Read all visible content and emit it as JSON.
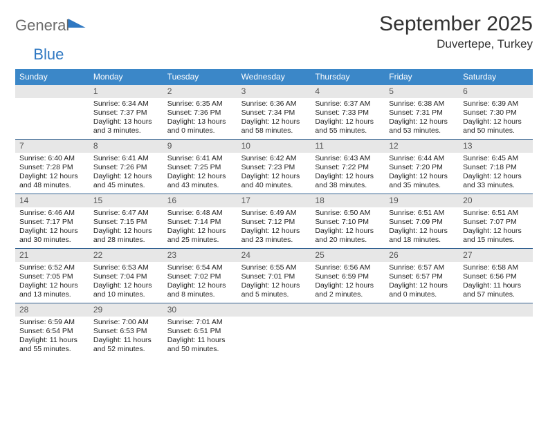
{
  "logo": {
    "part1": "General",
    "part2": "Blue"
  },
  "title": "September 2025",
  "location": "Duvertepe, Turkey",
  "colors": {
    "header_bg": "#3b87c8",
    "daynum_bg": "#e7e7e7",
    "week_border": "#2f5f8f",
    "text": "#222222",
    "logo_blue": "#2f78c2"
  },
  "fonts": {
    "title_size_pt": 30,
    "location_size_pt": 17,
    "dow_size_pt": 12,
    "daynum_size_pt": 12,
    "body_size_pt": 10.5
  },
  "dow": [
    "Sunday",
    "Monday",
    "Tuesday",
    "Wednesday",
    "Thursday",
    "Friday",
    "Saturday"
  ],
  "weeks": [
    [
      {
        "n": "",
        "sr": "",
        "ss": "",
        "dl": ""
      },
      {
        "n": "1",
        "sr": "Sunrise: 6:34 AM",
        "ss": "Sunset: 7:37 PM",
        "dl": "Daylight: 13 hours and 3 minutes."
      },
      {
        "n": "2",
        "sr": "Sunrise: 6:35 AM",
        "ss": "Sunset: 7:36 PM",
        "dl": "Daylight: 13 hours and 0 minutes."
      },
      {
        "n": "3",
        "sr": "Sunrise: 6:36 AM",
        "ss": "Sunset: 7:34 PM",
        "dl": "Daylight: 12 hours and 58 minutes."
      },
      {
        "n": "4",
        "sr": "Sunrise: 6:37 AM",
        "ss": "Sunset: 7:33 PM",
        "dl": "Daylight: 12 hours and 55 minutes."
      },
      {
        "n": "5",
        "sr": "Sunrise: 6:38 AM",
        "ss": "Sunset: 7:31 PM",
        "dl": "Daylight: 12 hours and 53 minutes."
      },
      {
        "n": "6",
        "sr": "Sunrise: 6:39 AM",
        "ss": "Sunset: 7:30 PM",
        "dl": "Daylight: 12 hours and 50 minutes."
      }
    ],
    [
      {
        "n": "7",
        "sr": "Sunrise: 6:40 AM",
        "ss": "Sunset: 7:28 PM",
        "dl": "Daylight: 12 hours and 48 minutes."
      },
      {
        "n": "8",
        "sr": "Sunrise: 6:41 AM",
        "ss": "Sunset: 7:26 PM",
        "dl": "Daylight: 12 hours and 45 minutes."
      },
      {
        "n": "9",
        "sr": "Sunrise: 6:41 AM",
        "ss": "Sunset: 7:25 PM",
        "dl": "Daylight: 12 hours and 43 minutes."
      },
      {
        "n": "10",
        "sr": "Sunrise: 6:42 AM",
        "ss": "Sunset: 7:23 PM",
        "dl": "Daylight: 12 hours and 40 minutes."
      },
      {
        "n": "11",
        "sr": "Sunrise: 6:43 AM",
        "ss": "Sunset: 7:22 PM",
        "dl": "Daylight: 12 hours and 38 minutes."
      },
      {
        "n": "12",
        "sr": "Sunrise: 6:44 AM",
        "ss": "Sunset: 7:20 PM",
        "dl": "Daylight: 12 hours and 35 minutes."
      },
      {
        "n": "13",
        "sr": "Sunrise: 6:45 AM",
        "ss": "Sunset: 7:18 PM",
        "dl": "Daylight: 12 hours and 33 minutes."
      }
    ],
    [
      {
        "n": "14",
        "sr": "Sunrise: 6:46 AM",
        "ss": "Sunset: 7:17 PM",
        "dl": "Daylight: 12 hours and 30 minutes."
      },
      {
        "n": "15",
        "sr": "Sunrise: 6:47 AM",
        "ss": "Sunset: 7:15 PM",
        "dl": "Daylight: 12 hours and 28 minutes."
      },
      {
        "n": "16",
        "sr": "Sunrise: 6:48 AM",
        "ss": "Sunset: 7:14 PM",
        "dl": "Daylight: 12 hours and 25 minutes."
      },
      {
        "n": "17",
        "sr": "Sunrise: 6:49 AM",
        "ss": "Sunset: 7:12 PM",
        "dl": "Daylight: 12 hours and 23 minutes."
      },
      {
        "n": "18",
        "sr": "Sunrise: 6:50 AM",
        "ss": "Sunset: 7:10 PM",
        "dl": "Daylight: 12 hours and 20 minutes."
      },
      {
        "n": "19",
        "sr": "Sunrise: 6:51 AM",
        "ss": "Sunset: 7:09 PM",
        "dl": "Daylight: 12 hours and 18 minutes."
      },
      {
        "n": "20",
        "sr": "Sunrise: 6:51 AM",
        "ss": "Sunset: 7:07 PM",
        "dl": "Daylight: 12 hours and 15 minutes."
      }
    ],
    [
      {
        "n": "21",
        "sr": "Sunrise: 6:52 AM",
        "ss": "Sunset: 7:05 PM",
        "dl": "Daylight: 12 hours and 13 minutes."
      },
      {
        "n": "22",
        "sr": "Sunrise: 6:53 AM",
        "ss": "Sunset: 7:04 PM",
        "dl": "Daylight: 12 hours and 10 minutes."
      },
      {
        "n": "23",
        "sr": "Sunrise: 6:54 AM",
        "ss": "Sunset: 7:02 PM",
        "dl": "Daylight: 12 hours and 8 minutes."
      },
      {
        "n": "24",
        "sr": "Sunrise: 6:55 AM",
        "ss": "Sunset: 7:01 PM",
        "dl": "Daylight: 12 hours and 5 minutes."
      },
      {
        "n": "25",
        "sr": "Sunrise: 6:56 AM",
        "ss": "Sunset: 6:59 PM",
        "dl": "Daylight: 12 hours and 2 minutes."
      },
      {
        "n": "26",
        "sr": "Sunrise: 6:57 AM",
        "ss": "Sunset: 6:57 PM",
        "dl": "Daylight: 12 hours and 0 minutes."
      },
      {
        "n": "27",
        "sr": "Sunrise: 6:58 AM",
        "ss": "Sunset: 6:56 PM",
        "dl": "Daylight: 11 hours and 57 minutes."
      }
    ],
    [
      {
        "n": "28",
        "sr": "Sunrise: 6:59 AM",
        "ss": "Sunset: 6:54 PM",
        "dl": "Daylight: 11 hours and 55 minutes."
      },
      {
        "n": "29",
        "sr": "Sunrise: 7:00 AM",
        "ss": "Sunset: 6:53 PM",
        "dl": "Daylight: 11 hours and 52 minutes."
      },
      {
        "n": "30",
        "sr": "Sunrise: 7:01 AM",
        "ss": "Sunset: 6:51 PM",
        "dl": "Daylight: 11 hours and 50 minutes."
      },
      {
        "n": "",
        "sr": "",
        "ss": "",
        "dl": ""
      },
      {
        "n": "",
        "sr": "",
        "ss": "",
        "dl": ""
      },
      {
        "n": "",
        "sr": "",
        "ss": "",
        "dl": ""
      },
      {
        "n": "",
        "sr": "",
        "ss": "",
        "dl": ""
      }
    ]
  ]
}
